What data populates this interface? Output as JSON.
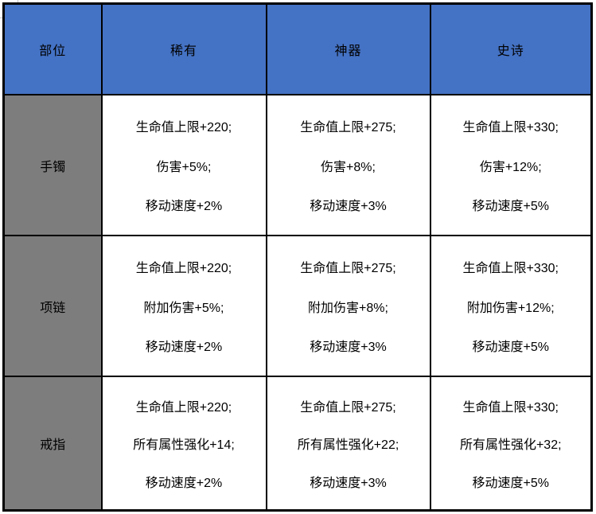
{
  "table": {
    "headers": {
      "part": "部位",
      "rare": "稀有",
      "artifact": "神器",
      "epic": "史诗"
    },
    "rows": [
      {
        "part": "手镯",
        "cols": [
          {
            "lines": [
              "生命值上限+220;",
              "伤害+5%;",
              "移动速度+2%"
            ]
          },
          {
            "lines": [
              "生命值上限+275;",
              "伤害+8%;",
              "移动速度+3%"
            ]
          },
          {
            "lines": [
              "生命值上限+330;",
              "伤害+12%;",
              "移动速度+5%"
            ]
          }
        ]
      },
      {
        "part": "项链",
        "cols": [
          {
            "lines": [
              "生命值上限+220;",
              "附加伤害+5%;",
              "移动速度+2%"
            ]
          },
          {
            "lines": [
              "生命值上限+275;",
              "附加伤害+8%;",
              "移动速度+3%"
            ]
          },
          {
            "lines": [
              "生命值上限+330;",
              "附加伤害+12%;",
              "移动速度+5%"
            ]
          }
        ]
      },
      {
        "part": "戒指",
        "cols": [
          {
            "lines": [
              "生命值上限+220;",
              "所有属性强化+14;",
              "移动速度+2%"
            ]
          },
          {
            "lines": [
              "生命值上限+275;",
              "所有属性强化+22;",
              "移动速度+3%"
            ]
          },
          {
            "lines": [
              "生命值上限+330;",
              "所有属性强化+32;",
              "移动速度+5%"
            ]
          }
        ]
      }
    ]
  },
  "colors": {
    "header_bg": "#4472C4",
    "row_label_bg": "#7D7D7D",
    "border": "#000000",
    "text": "#000000",
    "page_bg": "#FFFFFF"
  }
}
